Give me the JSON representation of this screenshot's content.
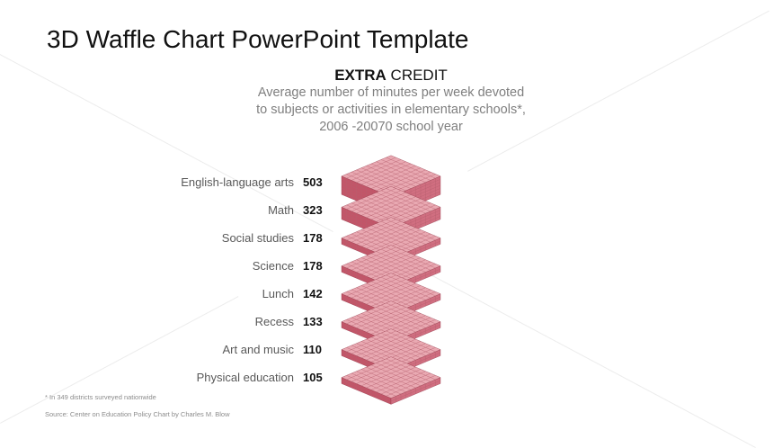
{
  "slide": {
    "title": "3D Waffle Chart PowerPoint Template"
  },
  "chart_data": {
    "type": "waffle",
    "title_bold": "EXTRA",
    "title_rest": " CREDIT",
    "subtitle_lines": [
      "Average  number of minutes per week devoted",
      "to subjects or activities in elementary schools*,",
      "2006 -20070 school year"
    ],
    "categories": [
      "English-language  arts",
      "Math",
      "Social studies",
      "Science",
      "Lunch",
      "Recess",
      "Art and music",
      "Physical education"
    ],
    "values": [
      503,
      323,
      178,
      178,
      142,
      133,
      110,
      105
    ],
    "block_color": "#e9a9b2",
    "block_side_color": "#c25568",
    "footnote": "* In 349 districts surveyed nationwide",
    "source": "Source: Center on Education Policy Chart by Charles M. Blow"
  }
}
